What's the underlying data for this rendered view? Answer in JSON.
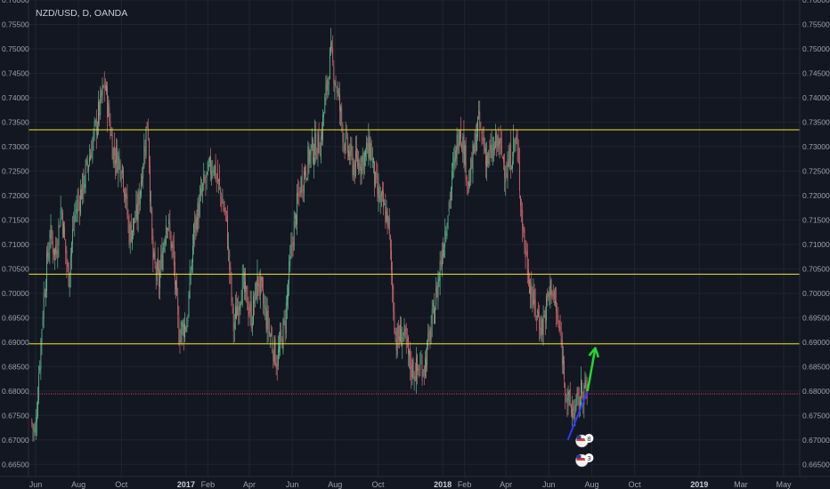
{
  "chart": {
    "symbol_title": "NZD/USD, D, OANDA",
    "colors": {
      "background": "#131722",
      "grid": "#1f2430",
      "axis_text": "#9aa0ab",
      "up_candle": "#5cb589",
      "down_candle": "#d26a6e",
      "level_line": "#f0ea22",
      "current_price": "#e040fb",
      "support_trendline": "#2b3cff",
      "projection_arrow": "#22d82f"
    },
    "horizontal_levels": [
      {
        "price": 0.73345,
        "label": "0.73345",
        "style": "solid"
      },
      {
        "price": 0.70391,
        "label": "0.70391",
        "style": "solid"
      },
      {
        "price": 0.68966,
        "label": "0.68966",
        "style": "solid"
      },
      {
        "price": 0.67942,
        "label": "0.67942",
        "style": "dotted-red"
      }
    ],
    "last_price_label": "0.67944",
    "event_badges": [
      "8",
      "3"
    ]
  },
  "chart_data": {
    "type": "candlestick",
    "title": "NZD/USD, D, OANDA",
    "y_axis_side": "both",
    "ylim": [
      0.6625,
      0.76
    ],
    "y_ticks": [
      "0.76000",
      "0.75500",
      "0.75000",
      "0.74500",
      "0.74000",
      "0.73500",
      "0.73000",
      "0.72500",
      "0.72000",
      "0.71500",
      "0.71000",
      "0.70500",
      "0.70000",
      "0.69500",
      "0.69000",
      "0.68500",
      "0.68000",
      "0.67500",
      "0.67000",
      "0.66500"
    ],
    "x_ticks": [
      "Jun",
      "Aug",
      "Oct",
      "2017",
      "Feb",
      "Apr",
      "Jun",
      "Aug",
      "Oct",
      "2018",
      "Feb",
      "Apr",
      "Jun",
      "Aug",
      "Oct",
      "2019",
      "Mar",
      "May"
    ],
    "bold_ticks": [
      "2017",
      "2018",
      "2019"
    ],
    "price_path": [
      [
        "2016-05-26",
        0.674
      ],
      [
        "2016-06-01",
        0.671
      ],
      [
        "2016-06-06",
        0.683
      ],
      [
        "2016-06-13",
        0.699
      ],
      [
        "2016-06-22",
        0.712
      ],
      [
        "2016-06-30",
        0.708
      ],
      [
        "2016-07-08",
        0.718
      ],
      [
        "2016-07-18",
        0.703
      ],
      [
        "2016-07-27",
        0.716
      ],
      [
        "2016-08-08",
        0.722
      ],
      [
        "2016-08-25",
        0.733
      ],
      [
        "2016-09-08",
        0.743
      ],
      [
        "2016-09-20",
        0.729
      ],
      [
        "2016-10-03",
        0.726
      ],
      [
        "2016-10-13",
        0.712
      ],
      [
        "2016-10-24",
        0.716
      ],
      [
        "2016-11-08",
        0.736
      ],
      [
        "2016-11-15",
        0.707
      ],
      [
        "2016-11-24",
        0.702
      ],
      [
        "2016-12-05",
        0.716
      ],
      [
        "2016-12-14",
        0.708
      ],
      [
        "2016-12-22",
        0.692
      ],
      [
        "2017-01-03",
        0.694
      ],
      [
        "2017-01-13",
        0.713
      ],
      [
        "2017-01-25",
        0.721
      ],
      [
        "2017-02-09",
        0.727
      ],
      [
        "2017-02-28",
        0.715
      ],
      [
        "2017-03-10",
        0.693
      ],
      [
        "2017-03-22",
        0.702
      ],
      [
        "2017-04-05",
        0.695
      ],
      [
        "2017-04-14",
        0.703
      ],
      [
        "2017-04-27",
        0.694
      ],
      [
        "2017-05-11",
        0.686
      ],
      [
        "2017-05-22",
        0.694
      ],
      [
        "2017-06-02",
        0.711
      ],
      [
        "2017-06-13",
        0.722
      ],
      [
        "2017-06-28",
        0.729
      ],
      [
        "2017-07-12",
        0.731
      ],
      [
        "2017-07-26",
        0.749
      ],
      [
        "2017-08-03",
        0.743
      ],
      [
        "2017-08-15",
        0.731
      ],
      [
        "2017-08-28",
        0.726
      ],
      [
        "2017-09-12",
        0.728
      ],
      [
        "2017-09-21",
        0.73
      ],
      [
        "2017-09-29",
        0.721
      ],
      [
        "2017-10-16",
        0.715
      ],
      [
        "2017-10-27",
        0.69
      ],
      [
        "2017-11-06",
        0.692
      ],
      [
        "2017-11-17",
        0.685
      ],
      [
        "2017-11-27",
        0.684
      ],
      [
        "2017-12-08",
        0.686
      ],
      [
        "2017-12-21",
        0.697
      ],
      [
        "2018-01-03",
        0.711
      ],
      [
        "2018-01-12",
        0.72
      ],
      [
        "2018-01-26",
        0.735
      ],
      [
        "2018-02-08",
        0.722
      ],
      [
        "2018-02-21",
        0.735
      ],
      [
        "2018-03-07",
        0.727
      ],
      [
        "2018-03-21",
        0.731
      ],
      [
        "2018-04-03",
        0.725
      ],
      [
        "2018-04-16",
        0.732
      ],
      [
        "2018-04-27",
        0.711
      ],
      [
        "2018-05-10",
        0.698
      ],
      [
        "2018-05-23",
        0.693
      ],
      [
        "2018-06-05",
        0.702
      ],
      [
        "2018-06-18",
        0.691
      ],
      [
        "2018-06-28",
        0.678
      ],
      [
        "2018-07-04",
        0.676
      ],
      [
        "2018-07-13",
        0.677
      ],
      [
        "2018-07-20",
        0.681
      ],
      [
        "2018-07-26",
        0.679
      ]
    ],
    "annotations": {
      "support_trendline": [
        [
          "2018-06-28",
          0.67
        ],
        [
          "2018-07-26",
          0.6799
        ]
      ],
      "projection_arrow": [
        [
          "2018-07-26",
          0.68
        ],
        [
          "2018-08-06",
          0.6888
        ]
      ]
    }
  }
}
